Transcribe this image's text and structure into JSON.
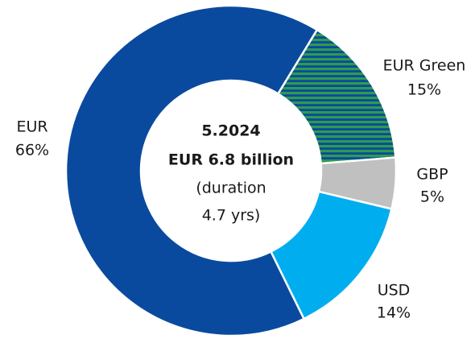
{
  "chart_data": {
    "type": "donut",
    "categories": [
      "EUR Green",
      "GBP",
      "USD",
      "EUR"
    ],
    "values": [
      15,
      5,
      14,
      66
    ],
    "value_labels": [
      "15%",
      "5%",
      "14%",
      "66%"
    ],
    "colors": [
      "#2e9b4e",
      "#c0c0c0",
      "#00aeef",
      "#0a4a9e"
    ],
    "center_text": [
      "5.2024",
      "EUR 6.8 billion",
      "(duration",
      "4.7 yrs)"
    ]
  }
}
